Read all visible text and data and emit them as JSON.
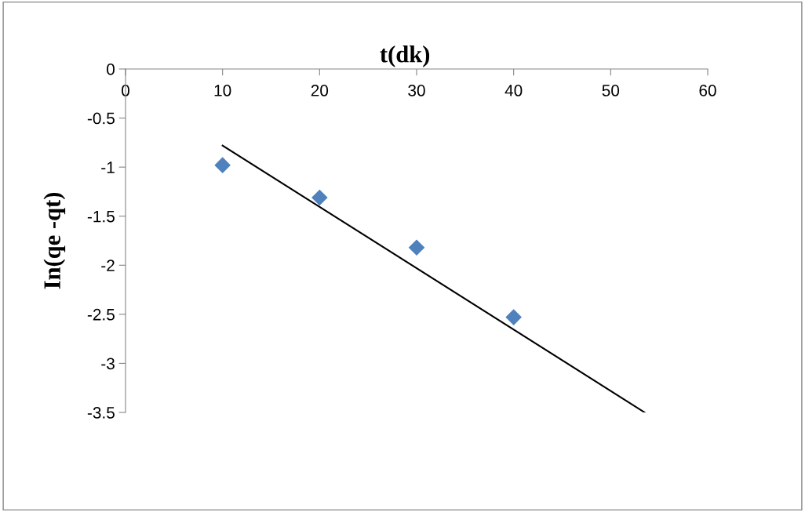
{
  "chart_data": {
    "type": "scatter",
    "xlabel": "t(dk)",
    "ylabel": "In(qe -qt)",
    "xlim": [
      0,
      60
    ],
    "xticks": [
      0,
      10,
      20,
      30,
      40,
      50,
      60
    ],
    "ylim": [
      -3.5,
      0
    ],
    "yticks": [
      -3.5,
      -3,
      -2.5,
      -2,
      -1.5,
      -1,
      -0.5,
      0
    ],
    "marker": "diamond",
    "grid": false,
    "legend": false,
    "series": [
      {
        "color": "#4f81bd",
        "x": [
          10,
          20,
          30,
          40
        ],
        "values": [
          -0.98,
          -1.31,
          -1.82,
          -2.53
        ]
      },
      {
        "type": "line",
        "color": "#000000",
        "marker": "none",
        "x": [
          10,
          53.5
        ],
        "values": [
          -0.78,
          -3.5
        ]
      }
    ]
  }
}
